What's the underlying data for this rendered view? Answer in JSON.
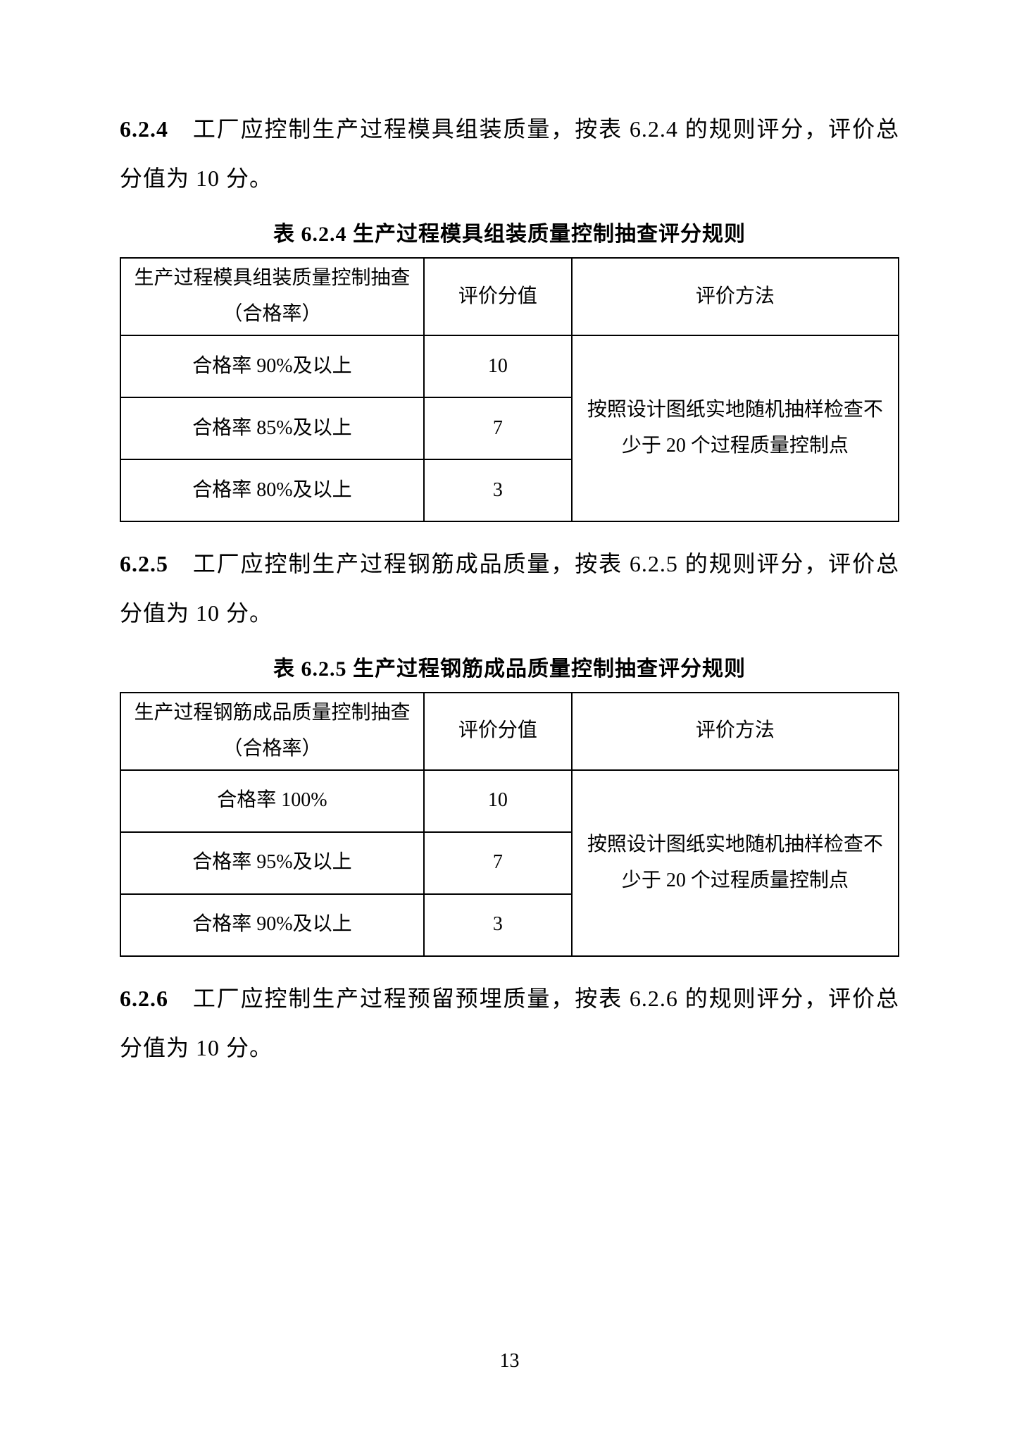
{
  "section_624": {
    "num": "6.2.4",
    "text": "工厂应控制生产过程模具组装质量，按表 6.2.4 的规则评分，评价总分值为 10 分。"
  },
  "table_624": {
    "title": "表 6.2.4  生产过程模具组装质量控制抽查评分规则",
    "header": {
      "col1": "生产过程模具组装质量控制抽查（合格率）",
      "col2": "评价分值",
      "col3": "评价方法"
    },
    "rows": [
      {
        "col1": "合格率 90%及以上",
        "col2": "10"
      },
      {
        "col1": "合格率 85%及以上",
        "col2": "7"
      },
      {
        "col1": "合格率 80%及以上",
        "col2": "3"
      }
    ],
    "method": "按照设计图纸实地随机抽样检查不少于 20 个过程质量控制点"
  },
  "section_625": {
    "num": "6.2.5",
    "text": "工厂应控制生产过程钢筋成品质量，按表 6.2.5 的规则评分，评价总分值为 10 分。"
  },
  "table_625": {
    "title": "表 6.2.5  生产过程钢筋成品质量控制抽查评分规则",
    "header": {
      "col1": "生产过程钢筋成品质量控制抽查（合格率）",
      "col2": "评价分值",
      "col3": "评价方法"
    },
    "rows": [
      {
        "col1": "合格率 100%",
        "col2": "10"
      },
      {
        "col1": "合格率 95%及以上",
        "col2": "7"
      },
      {
        "col1": "合格率 90%及以上",
        "col2": "3"
      }
    ],
    "method": "按照设计图纸实地随机抽样检查不少于 20 个过程质量控制点"
  },
  "section_626": {
    "num": "6.2.6",
    "text": "工厂应控制生产过程预留预埋质量，按表 6.2.6 的规则评分，评价总分值为 10 分。"
  },
  "page_number": "13"
}
